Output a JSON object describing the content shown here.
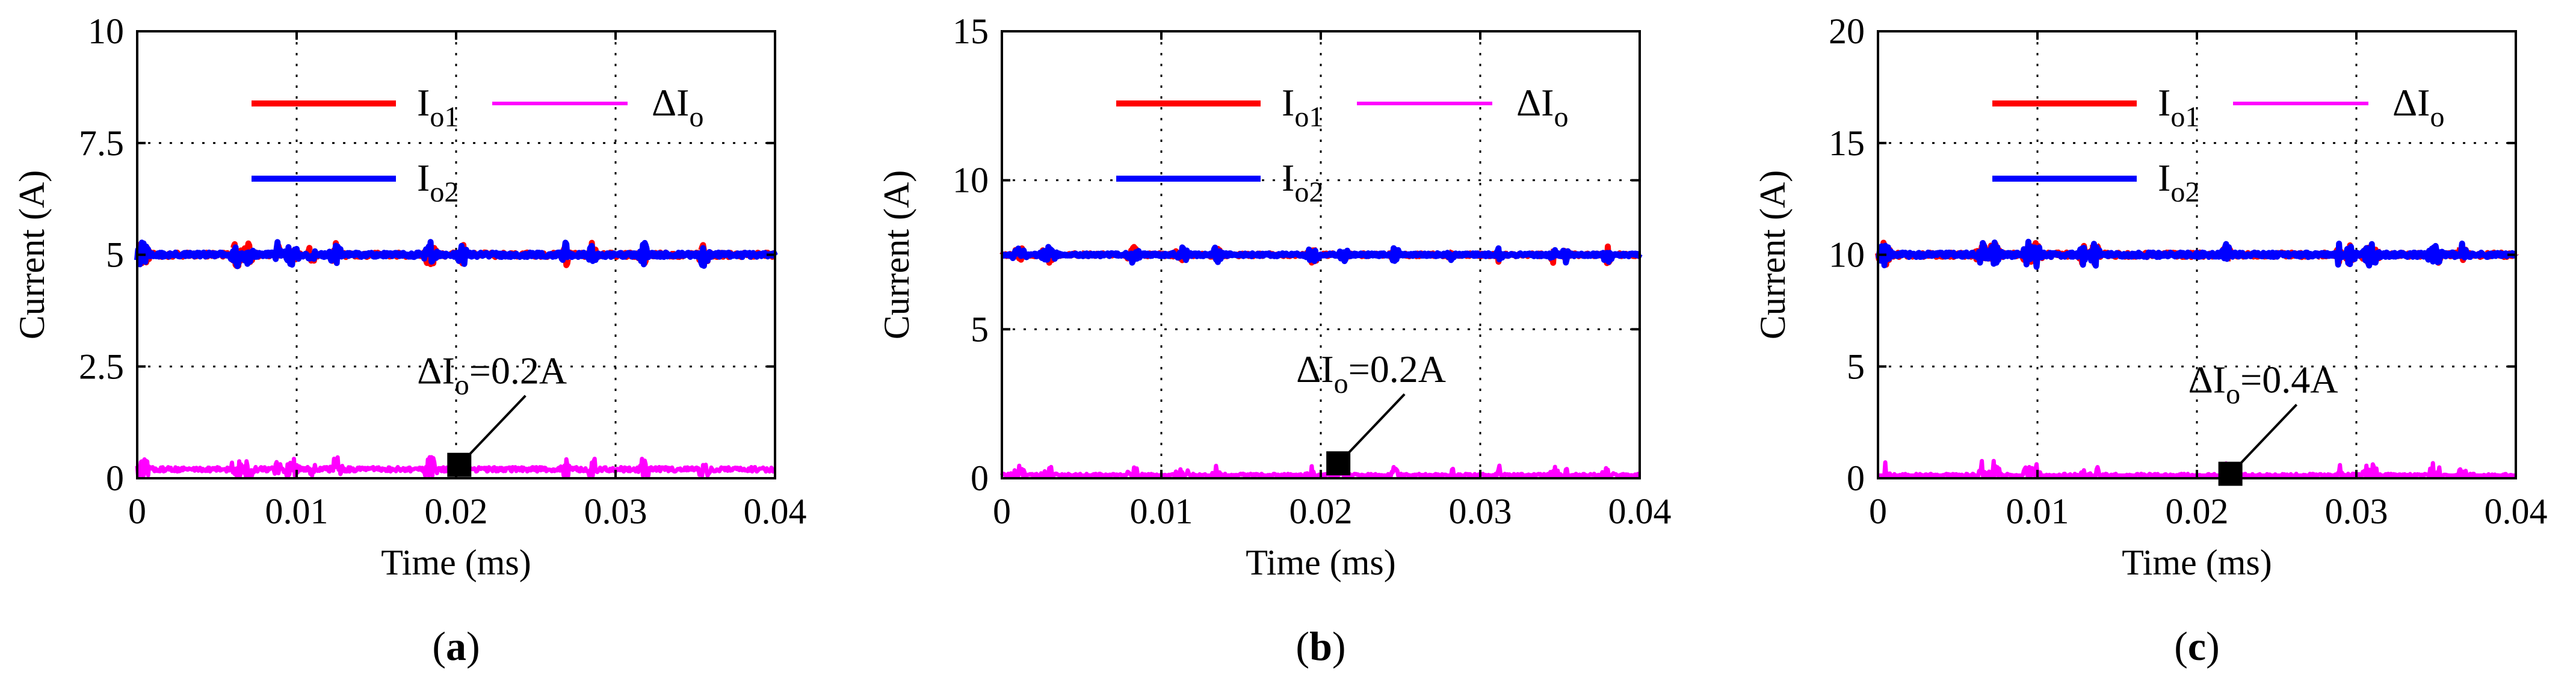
{
  "chart_data": [
    {
      "type": "line",
      "panel": "a",
      "xlabel": "Time (ms)",
      "ylabel": "Current (A)",
      "xlim": [
        0,
        0.04
      ],
      "ylim": [
        0,
        10
      ],
      "xticks": [
        0,
        0.01,
        0.02,
        0.03,
        0.04
      ],
      "xtick_labels": [
        "0",
        "0.01",
        "0.02",
        "0.03",
        "0.04"
      ],
      "yticks": [
        0,
        2.5,
        5,
        7.5,
        10
      ],
      "ytick_labels": [
        "0",
        "2.5",
        "5",
        "7.5",
        "10"
      ],
      "grid": true,
      "series": [
        {
          "name": "Io1",
          "label_main": "I",
          "label_sub": "o1",
          "color": "#ff0000",
          "mean": 5.0,
          "ripple": 0.2
        },
        {
          "name": "Io2",
          "label_main": "I",
          "label_sub": "o2",
          "color": "#0000ff",
          "mean": 5.0,
          "ripple": 0.2
        },
        {
          "name": "ΔIo",
          "label_main": "ΔI",
          "label_sub": "o",
          "color": "#ff00ff",
          "mean": 0.2,
          "ripple": 0.2
        }
      ],
      "annotation": {
        "main": "ΔI",
        "sub": "o",
        "value": "=0.2A",
        "x": 0.0202,
        "y": 0.3
      },
      "label_open": "(",
      "label_letter": "a",
      "label_close": ")"
    },
    {
      "type": "line",
      "panel": "b",
      "xlabel": "Time (ms)",
      "ylabel": "Current (A)",
      "xlim": [
        0,
        0.04
      ],
      "ylim": [
        0,
        15
      ],
      "xticks": [
        0,
        0.01,
        0.02,
        0.03,
        0.04
      ],
      "xtick_labels": [
        "0",
        "0.01",
        "0.02",
        "0.03",
        "0.04"
      ],
      "yticks": [
        0,
        5,
        10,
        15
      ],
      "ytick_labels": [
        "0",
        "5",
        "10",
        "15"
      ],
      "grid": true,
      "series": [
        {
          "name": "Io1",
          "label_main": "I",
          "label_sub": "o1",
          "color": "#ff0000",
          "mean": 7.5,
          "ripple": 0.2
        },
        {
          "name": "Io2",
          "label_main": "I",
          "label_sub": "o2",
          "color": "#0000ff",
          "mean": 7.5,
          "ripple": 0.2
        },
        {
          "name": "ΔIo",
          "label_main": "ΔI",
          "label_sub": "o",
          "color": "#ff00ff",
          "mean": 0.1,
          "ripple": 0.2
        }
      ],
      "annotation": {
        "main": "ΔI",
        "sub": "o",
        "value": "=0.2A",
        "x": 0.0211,
        "y": 0.5
      },
      "label_open": "(",
      "label_letter": "b",
      "label_close": ")"
    },
    {
      "type": "line",
      "panel": "c",
      "xlabel": "Time (ms)",
      "ylabel": "Current (A)",
      "xlim": [
        0,
        0.04
      ],
      "ylim": [
        0,
        20
      ],
      "xticks": [
        0,
        0.01,
        0.02,
        0.03,
        0.04
      ],
      "xtick_labels": [
        "0",
        "0.01",
        "0.02",
        "0.03",
        "0.04"
      ],
      "yticks": [
        0,
        5,
        10,
        15,
        20
      ],
      "ytick_labels": [
        "0",
        "5",
        "10",
        "15",
        "20"
      ],
      "grid": true,
      "series": [
        {
          "name": "Io1",
          "label_main": "I",
          "label_sub": "o1",
          "color": "#ff0000",
          "mean": 10.0,
          "ripple": 0.4
        },
        {
          "name": "Io2",
          "label_main": "I",
          "label_sub": "o2",
          "color": "#0000ff",
          "mean": 10.0,
          "ripple": 0.4
        },
        {
          "name": "ΔIo",
          "label_main": "ΔI",
          "label_sub": "o",
          "color": "#ff00ff",
          "mean": 0.1,
          "ripple": 0.4
        }
      ],
      "annotation": {
        "main": "ΔI",
        "sub": "o",
        "value": "=0.4A",
        "x": 0.0221,
        "y": 0.2
      },
      "label_open": "(",
      "label_letter": "c",
      "label_close": ")"
    }
  ]
}
